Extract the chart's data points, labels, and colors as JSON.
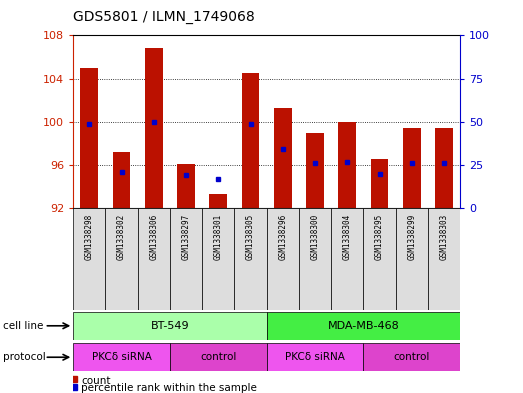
{
  "title": "GDS5801 / ILMN_1749068",
  "samples": [
    "GSM1338298",
    "GSM1338302",
    "GSM1338306",
    "GSM1338297",
    "GSM1338301",
    "GSM1338305",
    "GSM1338296",
    "GSM1338300",
    "GSM1338304",
    "GSM1338295",
    "GSM1338299",
    "GSM1338303"
  ],
  "counts": [
    105.0,
    97.2,
    106.8,
    96.1,
    93.3,
    104.5,
    101.3,
    99.0,
    100.0,
    96.6,
    99.4,
    99.4
  ],
  "percentiles": [
    49,
    21,
    50,
    19,
    17,
    49,
    34,
    26,
    27,
    20,
    26,
    26
  ],
  "ylim_left": [
    92,
    108
  ],
  "ylim_right": [
    0,
    100
  ],
  "yticks_left": [
    92,
    96,
    100,
    104,
    108
  ],
  "yticks_right": [
    0,
    25,
    50,
    75,
    100
  ],
  "bar_color": "#bb1100",
  "dot_color": "#0000cc",
  "cell_line_labels": [
    {
      "label": "BT-549",
      "start": 0,
      "end": 6,
      "color": "#aaffaa"
    },
    {
      "label": "MDA-MB-468",
      "start": 6,
      "end": 12,
      "color": "#44ee44"
    }
  ],
  "protocol_labels": [
    {
      "label": "PKCδ siRNA",
      "start": 0,
      "end": 3,
      "color": "#ee55ee"
    },
    {
      "label": "control",
      "start": 3,
      "end": 6,
      "color": "#dd44cc"
    },
    {
      "label": "PKCδ siRNA",
      "start": 6,
      "end": 9,
      "color": "#ee55ee"
    },
    {
      "label": "control",
      "start": 9,
      "end": 12,
      "color": "#dd44cc"
    }
  ],
  "tick_color_left": "#cc2200",
  "tick_color_right": "#0000cc",
  "bg_color": "#ffffff",
  "plot_bg": "#ffffff",
  "xtick_bg": "#dddddd"
}
